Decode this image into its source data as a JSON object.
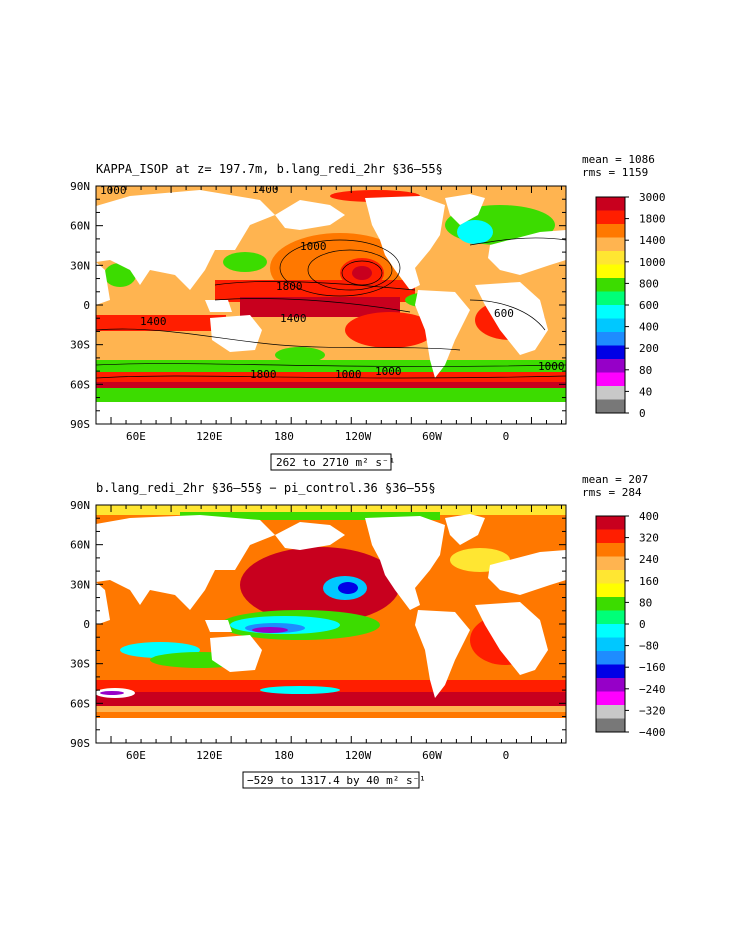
{
  "panels": [
    {
      "title": "KAPPA_ISOP at z= 197.7m, b.lang_redi_2hr §36–55§",
      "stats": {
        "mean": "mean = 1086",
        "rms": "rms = 1159"
      },
      "range_label": "262 to 2710 m² s⁻¹",
      "contour_labels": [
        "1000",
        "1400",
        "1800",
        "1000",
        "1400",
        "1800",
        "600",
        "1000",
        "1000",
        "1000",
        "1400"
      ]
    },
    {
      "title": "b.lang_redi_2hr §36–55§ − pi_control.36 §36–55§",
      "stats": {
        "mean": "mean = 207",
        "rms": "rms = 284"
      },
      "range_label": "−529 to 1317.4 by 40 m² s⁻¹",
      "contour_labels": []
    }
  ],
  "chart_data": [
    {
      "type": "heatmap",
      "title": "KAPPA_ISOP at z= 197.7m, b.lang_redi_2hr §36–55§",
      "x_tick_labels": [
        "60E",
        "120E",
        "180",
        "120W",
        "60W",
        "0"
      ],
      "y_tick_labels": [
        "90N",
        "60N",
        "30N",
        "0",
        "30S",
        "60S",
        "90S"
      ],
      "colorbar": {
        "levels": [
          "3000",
          "1800",
          "1400",
          "1000",
          "800",
          "600",
          "400",
          "200",
          "80",
          "40",
          "0"
        ],
        "colors": [
          "#c8001e",
          "#ff1e00",
          "#ff7800",
          "#ffb450",
          "#ffe632",
          "#ffff00",
          "#3cdc00",
          "#00ff78",
          "#00ffff",
          "#00c8ff",
          "#1e8cff",
          "#0000e6",
          "#9600c8",
          "#ff00ff",
          "#c8c8c8",
          "#787878"
        ]
      },
      "stats": {
        "mean": 1086,
        "rms": 1159
      },
      "range": [
        262,
        2710
      ],
      "units": "m² s⁻¹"
    },
    {
      "type": "heatmap",
      "title": "b.lang_redi_2hr §36–55§ − pi_control.36 §36–55§",
      "x_tick_labels": [
        "60E",
        "120E",
        "180",
        "120W",
        "60W",
        "0"
      ],
      "y_tick_labels": [
        "90N",
        "60N",
        "30N",
        "0",
        "30S",
        "60S",
        "90S"
      ],
      "colorbar": {
        "levels": [
          "400",
          "320",
          "240",
          "160",
          "80",
          "0",
          "−80",
          "−160",
          "−240",
          "−320",
          "−400"
        ],
        "colors": [
          "#c8001e",
          "#ff1e00",
          "#ff7800",
          "#ffb450",
          "#ffe632",
          "#ffff00",
          "#3cdc00",
          "#00ff78",
          "#00ffff",
          "#00c8ff",
          "#1e8cff",
          "#0000e6",
          "#9600c8",
          "#ff00ff",
          "#c8c8c8",
          "#787878"
        ]
      },
      "stats": {
        "mean": 207,
        "rms": 284
      },
      "range": [
        -529,
        1317.4
      ],
      "interval": 40,
      "units": "m² s⁻¹"
    }
  ]
}
